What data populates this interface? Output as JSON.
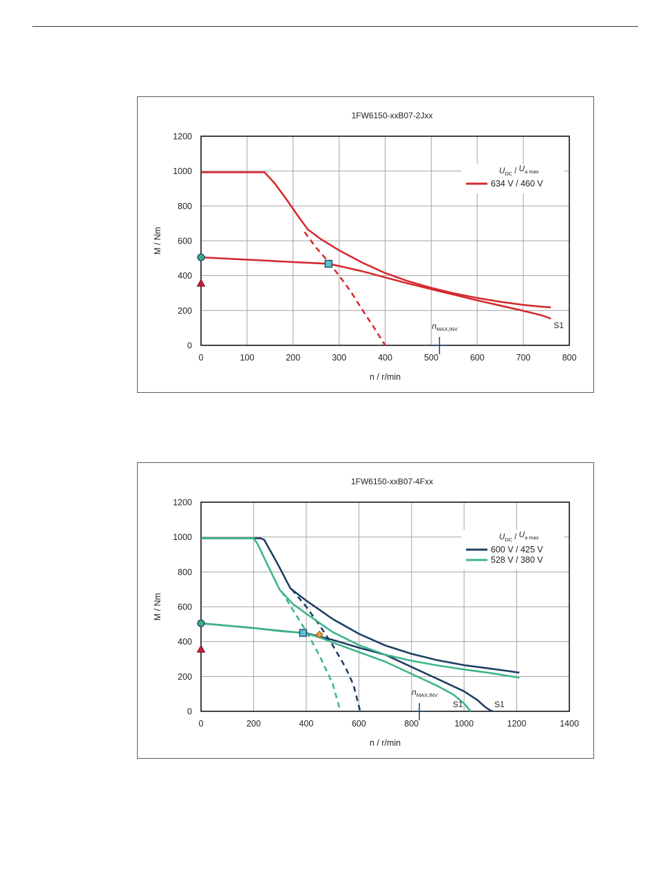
{
  "chart_data": [
    {
      "type": "line",
      "title": "1FW6150-xxB07-2Jxx",
      "xlabel": "n / r/min",
      "ylabel": "M / Nm",
      "xlim": [
        0,
        800
      ],
      "ylim": [
        0,
        1200
      ],
      "xticks": [
        "0",
        "100",
        "200",
        "300",
        "400",
        "500",
        "600",
        "700",
        "800"
      ],
      "yticks": [
        "0",
        "200",
        "400",
        "600",
        "800",
        "1000",
        "1200"
      ],
      "grid": true,
      "legend_position": "top-right",
      "legend_header": {
        "u1": "U",
        "s1": "DC",
        "sep": " / ",
        "u2": "U",
        "s2": "a max"
      },
      "n_max_inv": {
        "value": 518,
        "label_main": "n",
        "label_sub": "MAX,INV"
      },
      "s1_label": "S1",
      "series": [
        {
          "name": "634 V / 460 V",
          "color": "#d42a2e",
          "dash": false,
          "x": [
            0,
            138,
            160,
            185,
            210,
            232,
            260,
            300,
            350,
            400,
            450,
            500,
            550,
            600,
            650,
            700,
            740,
            760
          ],
          "y": [
            993,
            993,
            930,
            840,
            745,
            665,
            610,
            545,
            475,
            415,
            368,
            330,
            298,
            272,
            250,
            232,
            222,
            218
          ]
        },
        {
          "name": "",
          "color": "#d42a2e",
          "dash": false,
          "x": [
            0,
            100,
            200,
            277,
            300,
            350,
            400,
            450,
            500,
            550,
            600,
            650,
            700,
            740,
            760
          ],
          "y": [
            505,
            492,
            478,
            468,
            455,
            425,
            390,
            355,
            322,
            290,
            258,
            228,
            198,
            172,
            153
          ]
        },
        {
          "name": "",
          "color": "#d42a2e",
          "dash": true,
          "x": [
            225,
            250,
            275,
            300,
            325,
            350,
            375,
            400
          ],
          "y": [
            650,
            560,
            485,
            400,
            310,
            205,
            105,
            0
          ]
        }
      ],
      "markers": [
        {
          "shape": "circle",
          "x": 0,
          "y": 505,
          "color": "#3aaa85"
        },
        {
          "shape": "triangle",
          "x": 0,
          "y": 355,
          "color": "#c4203a"
        },
        {
          "shape": "square",
          "x": 277,
          "y": 468,
          "color": "#5bc0d0"
        }
      ]
    },
    {
      "type": "line",
      "title": "1FW6150-xxB07-4Fxx",
      "xlabel": "n / r/min",
      "ylabel": "M / Nm",
      "xlim": [
        0,
        1400
      ],
      "ylim": [
        0,
        1200
      ],
      "xticks": [
        "0",
        "200",
        "400",
        "600",
        "800",
        "1000",
        "1200",
        "1400"
      ],
      "yticks": [
        "0",
        "200",
        "400",
        "600",
        "800",
        "1000",
        "1200"
      ],
      "grid": true,
      "legend_position": "top-right",
      "legend_header": {
        "u1": "U",
        "s1": "DC",
        "sep": " / ",
        "u2": "U",
        "s2": "a max"
      },
      "n_max_inv": {
        "value": 830,
        "label_main": "n",
        "label_sub": "MAX,INV"
      },
      "s1_label": "S1",
      "series": [
        {
          "name": "600 V / 425 V",
          "color": "#1e3d62",
          "dash": false,
          "x": [
            0,
            225,
            240,
            290,
            340,
            400,
            500,
            600,
            700,
            800,
            900,
            1000,
            1100,
            1150,
            1210
          ],
          "y": [
            993,
            993,
            985,
            850,
            705,
            635,
            530,
            445,
            378,
            330,
            293,
            265,
            245,
            235,
            222
          ]
        },
        {
          "name": "",
          "color": "#1e3d62",
          "dash": false,
          "x": [
            0,
            200,
            300,
            400,
            500,
            600,
            700,
            800,
            900,
            1000,
            1050,
            1080,
            1100,
            1110
          ],
          "y": [
            505,
            478,
            462,
            448,
            410,
            365,
            325,
            255,
            185,
            115,
            65,
            25,
            5,
            0
          ]
        },
        {
          "name": "",
          "color": "#1e3d62",
          "dash": true,
          "x": [
            345,
            400,
            450,
            500,
            550,
            580,
            605
          ],
          "y": [
            700,
            600,
            495,
            380,
            250,
            150,
            0
          ]
        },
        {
          "name": "528 V / 380 V",
          "color": "#3cb58a",
          "dash": false,
          "x": [
            0,
            200,
            215,
            250,
            300,
            350,
            400,
            500,
            600,
            700,
            800,
            900,
            1000,
            1100,
            1210
          ],
          "y": [
            993,
            993,
            960,
            850,
            695,
            615,
            560,
            455,
            380,
            325,
            290,
            263,
            240,
            220,
            193
          ]
        },
        {
          "name": "",
          "color": "#3cb58a",
          "dash": false,
          "x": [
            0,
            200,
            300,
            388,
            450,
            500,
            600,
            700,
            800,
            900,
            960,
            1000,
            1025
          ],
          "y": [
            505,
            478,
            460,
            450,
            425,
            395,
            340,
            285,
            215,
            145,
            95,
            45,
            0
          ]
        },
        {
          "name": "",
          "color": "#3cb58a",
          "dash": true,
          "x": [
            305,
            350,
            400,
            450,
            500,
            530
          ],
          "y": [
            690,
            580,
            460,
            320,
            160,
            0
          ]
        }
      ],
      "markers": [
        {
          "shape": "circle",
          "x": 0,
          "y": 505,
          "color": "#3aaa85"
        },
        {
          "shape": "triangle",
          "x": 0,
          "y": 355,
          "color": "#c4203a"
        },
        {
          "shape": "square",
          "x": 388,
          "y": 450,
          "color": "#5bc0d0"
        },
        {
          "shape": "diamond",
          "x": 450,
          "y": 440,
          "color": "#f09a3c"
        }
      ]
    }
  ]
}
